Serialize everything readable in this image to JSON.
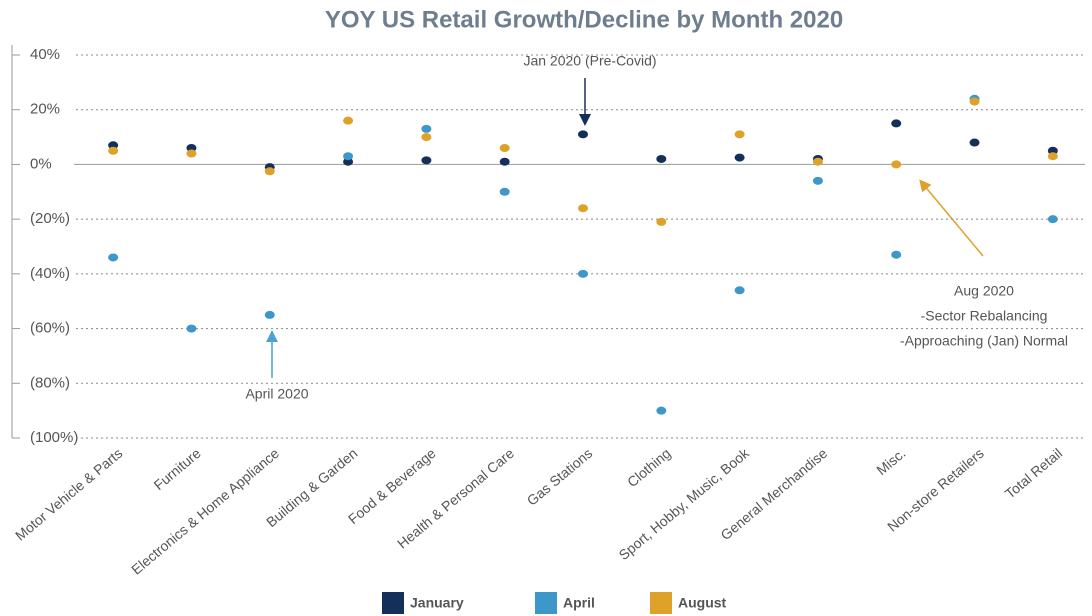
{
  "chart_data": {
    "type": "scatter",
    "title": "YOY US Retail Growth/Decline by Month 2020",
    "categories": [
      "Motor Vehicle & Parts",
      "Furniture",
      "Electronics & Home Appliance",
      "Building & Garden",
      "Food & Beverage",
      "Health & Personal Care",
      "Gas Stations",
      "Clothing",
      "Sport, Hobby, Music, Book",
      "General Merchandise",
      "Misc.",
      "Non-store Retailers",
      "Total Retail"
    ],
    "series": [
      {
        "name": "January",
        "color": "#14305a",
        "values": [
          7,
          6,
          -1,
          1,
          1.5,
          1,
          11,
          2,
          2.5,
          2,
          15,
          8,
          5
        ]
      },
      {
        "name": "April",
        "color": "#3d98c9",
        "values": [
          -34,
          -60,
          -55,
          3,
          13,
          -10,
          -40,
          -90,
          -46,
          -6,
          -33,
          24,
          -20
        ]
      },
      {
        "name": "August",
        "color": "#dea12a",
        "values": [
          5,
          4,
          -2.5,
          16,
          10,
          6,
          -16,
          -21,
          11,
          1,
          0,
          23,
          3
        ]
      }
    ],
    "ylim": [
      -100,
      40
    ],
    "yticks": [
      {
        "value": 40,
        "label": "40%"
      },
      {
        "value": 20,
        "label": "20%"
      },
      {
        "value": 0,
        "label": "0%"
      },
      {
        "value": -20,
        "label": "(20%)"
      },
      {
        "value": -40,
        "label": "(40%)"
      },
      {
        "value": -60,
        "label": "(60%)"
      },
      {
        "value": -80,
        "label": "(80%)"
      },
      {
        "value": -100,
        "label": "(100%)"
      }
    ],
    "grid": true,
    "legend": "bottom",
    "annotations": {
      "jan": "Jan 2020 (Pre-Covid)",
      "april": "April 2020",
      "aug": [
        "Aug 2020",
        "-Sector Rebalancing",
        "-Approaching (Jan) Normal"
      ]
    }
  }
}
